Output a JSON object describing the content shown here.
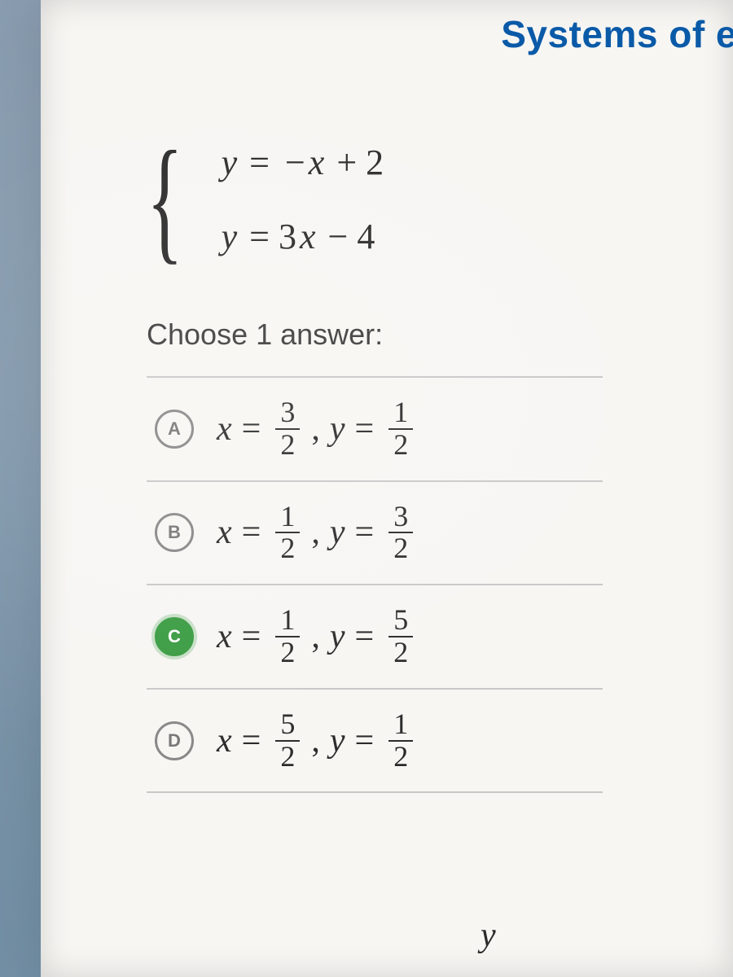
{
  "header": {
    "title": "Systems of e"
  },
  "system": {
    "eq1": "y = −x + 2",
    "eq2": "y = 3x − 4"
  },
  "prompt": "Choose 1 answer:",
  "choices": [
    {
      "letter": "A",
      "selected": false,
      "x_num": "3",
      "x_den": "2",
      "y_num": "1",
      "y_den": "2"
    },
    {
      "letter": "B",
      "selected": false,
      "x_num": "1",
      "x_den": "2",
      "y_num": "3",
      "y_den": "2"
    },
    {
      "letter": "C",
      "selected": true,
      "x_num": "1",
      "x_den": "2",
      "y_num": "5",
      "y_den": "2"
    },
    {
      "letter": "D",
      "selected": false,
      "x_num": "5",
      "x_den": "2",
      "y_num": "1",
      "y_den": "2"
    }
  ],
  "stray": {
    "y": "y"
  },
  "colors": {
    "header_text": "#0a5aa8",
    "body_text": "#2a2a2a",
    "divider": "#c8c8c8",
    "selected_bg": "#3a9b42",
    "page_bg": "#f7f6f3"
  },
  "fontsizes": {
    "header": 46,
    "equation": 44,
    "prompt": 36,
    "choice": 42
  }
}
